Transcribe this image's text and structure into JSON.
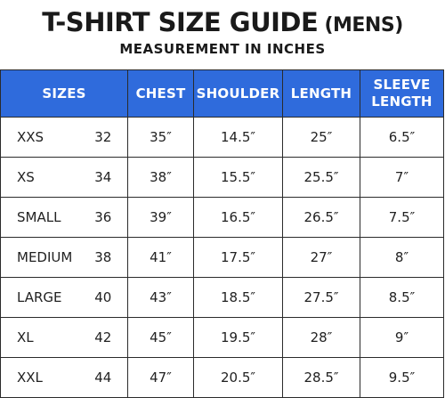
{
  "header": {
    "title_main": "T-SHIRT SIZE GUIDE",
    "title_suffix": " (MENS)",
    "subtitle": "MEASUREMENT IN INCHES"
  },
  "colors": {
    "header_bg": "#2f6bdc",
    "header_text": "#ffffff"
  },
  "table": {
    "columns": {
      "sizes": "SIZES",
      "chest": "CHEST",
      "shoulder": "SHOULDER",
      "length": "LENGTH",
      "sleeve_line1": "SLEEVE",
      "sleeve_line2": "LENGTH"
    },
    "rows": [
      {
        "size": "XXS",
        "num": "32",
        "chest": "35″",
        "shoulder": "14.5″",
        "length": "25″",
        "sleeve": "6.5″"
      },
      {
        "size": "XS",
        "num": "34",
        "chest": "38″",
        "shoulder": "15.5″",
        "length": "25.5″",
        "sleeve": "7″"
      },
      {
        "size": "SMALL",
        "num": "36",
        "chest": "39″",
        "shoulder": "16.5″",
        "length": "26.5″",
        "sleeve": "7.5″"
      },
      {
        "size": "MEDIUM",
        "num": "38",
        "chest": "41″",
        "shoulder": "17.5″",
        "length": "27″",
        "sleeve": "8″"
      },
      {
        "size": "LARGE",
        "num": "40",
        "chest": "43″",
        "shoulder": "18.5″",
        "length": "27.5″",
        "sleeve": "8.5″"
      },
      {
        "size": "XL",
        "num": "42",
        "chest": "45″",
        "shoulder": "19.5″",
        "length": "28″",
        "sleeve": "9″"
      },
      {
        "size": "XXL",
        "num": "44",
        "chest": "47″",
        "shoulder": "20.5″",
        "length": "28.5″",
        "sleeve": "9.5″"
      }
    ]
  }
}
